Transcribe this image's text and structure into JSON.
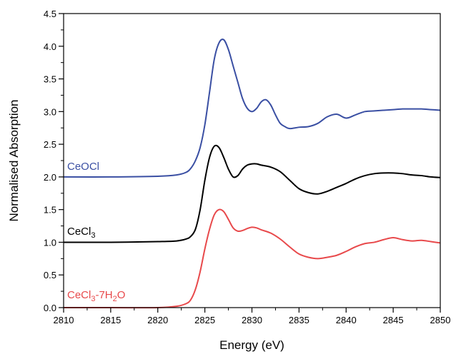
{
  "chart_data": {
    "type": "line",
    "title": "",
    "xlabel": "Energy (eV)",
    "ylabel": "Normalised Absorption",
    "xlim": [
      2810,
      2850
    ],
    "ylim": [
      0,
      4.5
    ],
    "xticks": [
      "2810",
      "2815",
      "2820",
      "2825",
      "2830",
      "2835",
      "2840",
      "2845",
      "2850"
    ],
    "yticks": [
      "0.0",
      "0.5",
      "1.0",
      "1.5",
      "2.0",
      "2.5",
      "3.0",
      "3.5",
      "4.0",
      "4.5"
    ],
    "grid": false,
    "legend": "none",
    "series": [
      {
        "name": "CeOCl",
        "label_main": "CeOCl",
        "label_sub": "",
        "label_tail": "",
        "color": "#3a4fa3",
        "x": [
          2810,
          2815,
          2820,
          2822,
          2823,
          2823.5,
          2824,
          2824.5,
          2825,
          2825.5,
          2826,
          2826.5,
          2827,
          2827.5,
          2828,
          2828.5,
          2829,
          2829.5,
          2830,
          2830.5,
          2831,
          2831.5,
          2832,
          2832.5,
          2833,
          2833.5,
          2834,
          2835,
          2836,
          2837,
          2838,
          2839,
          2840,
          2841,
          2842,
          2843,
          2844,
          2845,
          2846,
          2847,
          2848,
          2849,
          2850
        ],
        "y": [
          2.0,
          2.0,
          2.01,
          2.03,
          2.07,
          2.13,
          2.25,
          2.45,
          2.8,
          3.3,
          3.8,
          4.05,
          4.1,
          3.95,
          3.7,
          3.45,
          3.2,
          3.05,
          3.0,
          3.05,
          3.15,
          3.18,
          3.1,
          2.95,
          2.82,
          2.77,
          2.74,
          2.76,
          2.77,
          2.82,
          2.92,
          2.96,
          2.9,
          2.95,
          3.0,
          3.01,
          3.02,
          3.03,
          3.04,
          3.04,
          3.04,
          3.03,
          3.02
        ]
      },
      {
        "name": "CeCl3",
        "label_main": "CeCl",
        "label_sub": "3",
        "label_tail": "",
        "color": "#000000",
        "x": [
          2810,
          2815,
          2820,
          2822,
          2823,
          2823.5,
          2824,
          2824.5,
          2825,
          2825.5,
          2826,
          2826.5,
          2827,
          2827.5,
          2828,
          2828.5,
          2829,
          2829.5,
          2830,
          2830.5,
          2831,
          2832,
          2833,
          2834,
          2835,
          2836,
          2837,
          2838,
          2839,
          2840,
          2841,
          2842,
          2843,
          2844,
          2845,
          2846,
          2847,
          2848,
          2849,
          2850
        ],
        "y": [
          1.0,
          1.0,
          1.01,
          1.02,
          1.05,
          1.09,
          1.2,
          1.5,
          1.95,
          2.3,
          2.47,
          2.45,
          2.3,
          2.12,
          2.0,
          2.02,
          2.12,
          2.18,
          2.2,
          2.2,
          2.18,
          2.15,
          2.08,
          1.95,
          1.82,
          1.76,
          1.74,
          1.78,
          1.84,
          1.9,
          1.97,
          2.02,
          2.05,
          2.06,
          2.06,
          2.05,
          2.03,
          2.02,
          2.0,
          1.99
        ]
      },
      {
        "name": "CeCl3-7H2O",
        "label_main": "CeCl",
        "label_sub": "3",
        "label_tail": "-7H",
        "label_sub2": "2",
        "label_end": "O",
        "color": "#e8494b",
        "x": [
          2810,
          2815,
          2820,
          2822,
          2823,
          2823.5,
          2824,
          2824.5,
          2825,
          2825.5,
          2826,
          2826.5,
          2827,
          2827.5,
          2828,
          2828.5,
          2829,
          2829.5,
          2830,
          2830.5,
          2831,
          2832,
          2833,
          2834,
          2835,
          2836,
          2837,
          2838,
          2839,
          2840,
          2841,
          2842,
          2843,
          2844,
          2845,
          2846,
          2847,
          2848,
          2849,
          2850
        ],
        "y": [
          0.0,
          0.0,
          0.0,
          0.02,
          0.06,
          0.12,
          0.28,
          0.55,
          0.9,
          1.2,
          1.42,
          1.5,
          1.47,
          1.35,
          1.22,
          1.17,
          1.18,
          1.21,
          1.23,
          1.22,
          1.19,
          1.14,
          1.05,
          0.93,
          0.82,
          0.77,
          0.75,
          0.77,
          0.8,
          0.86,
          0.93,
          0.98,
          1.0,
          1.04,
          1.07,
          1.04,
          1.02,
          1.03,
          1.01,
          0.99
        ]
      }
    ]
  }
}
